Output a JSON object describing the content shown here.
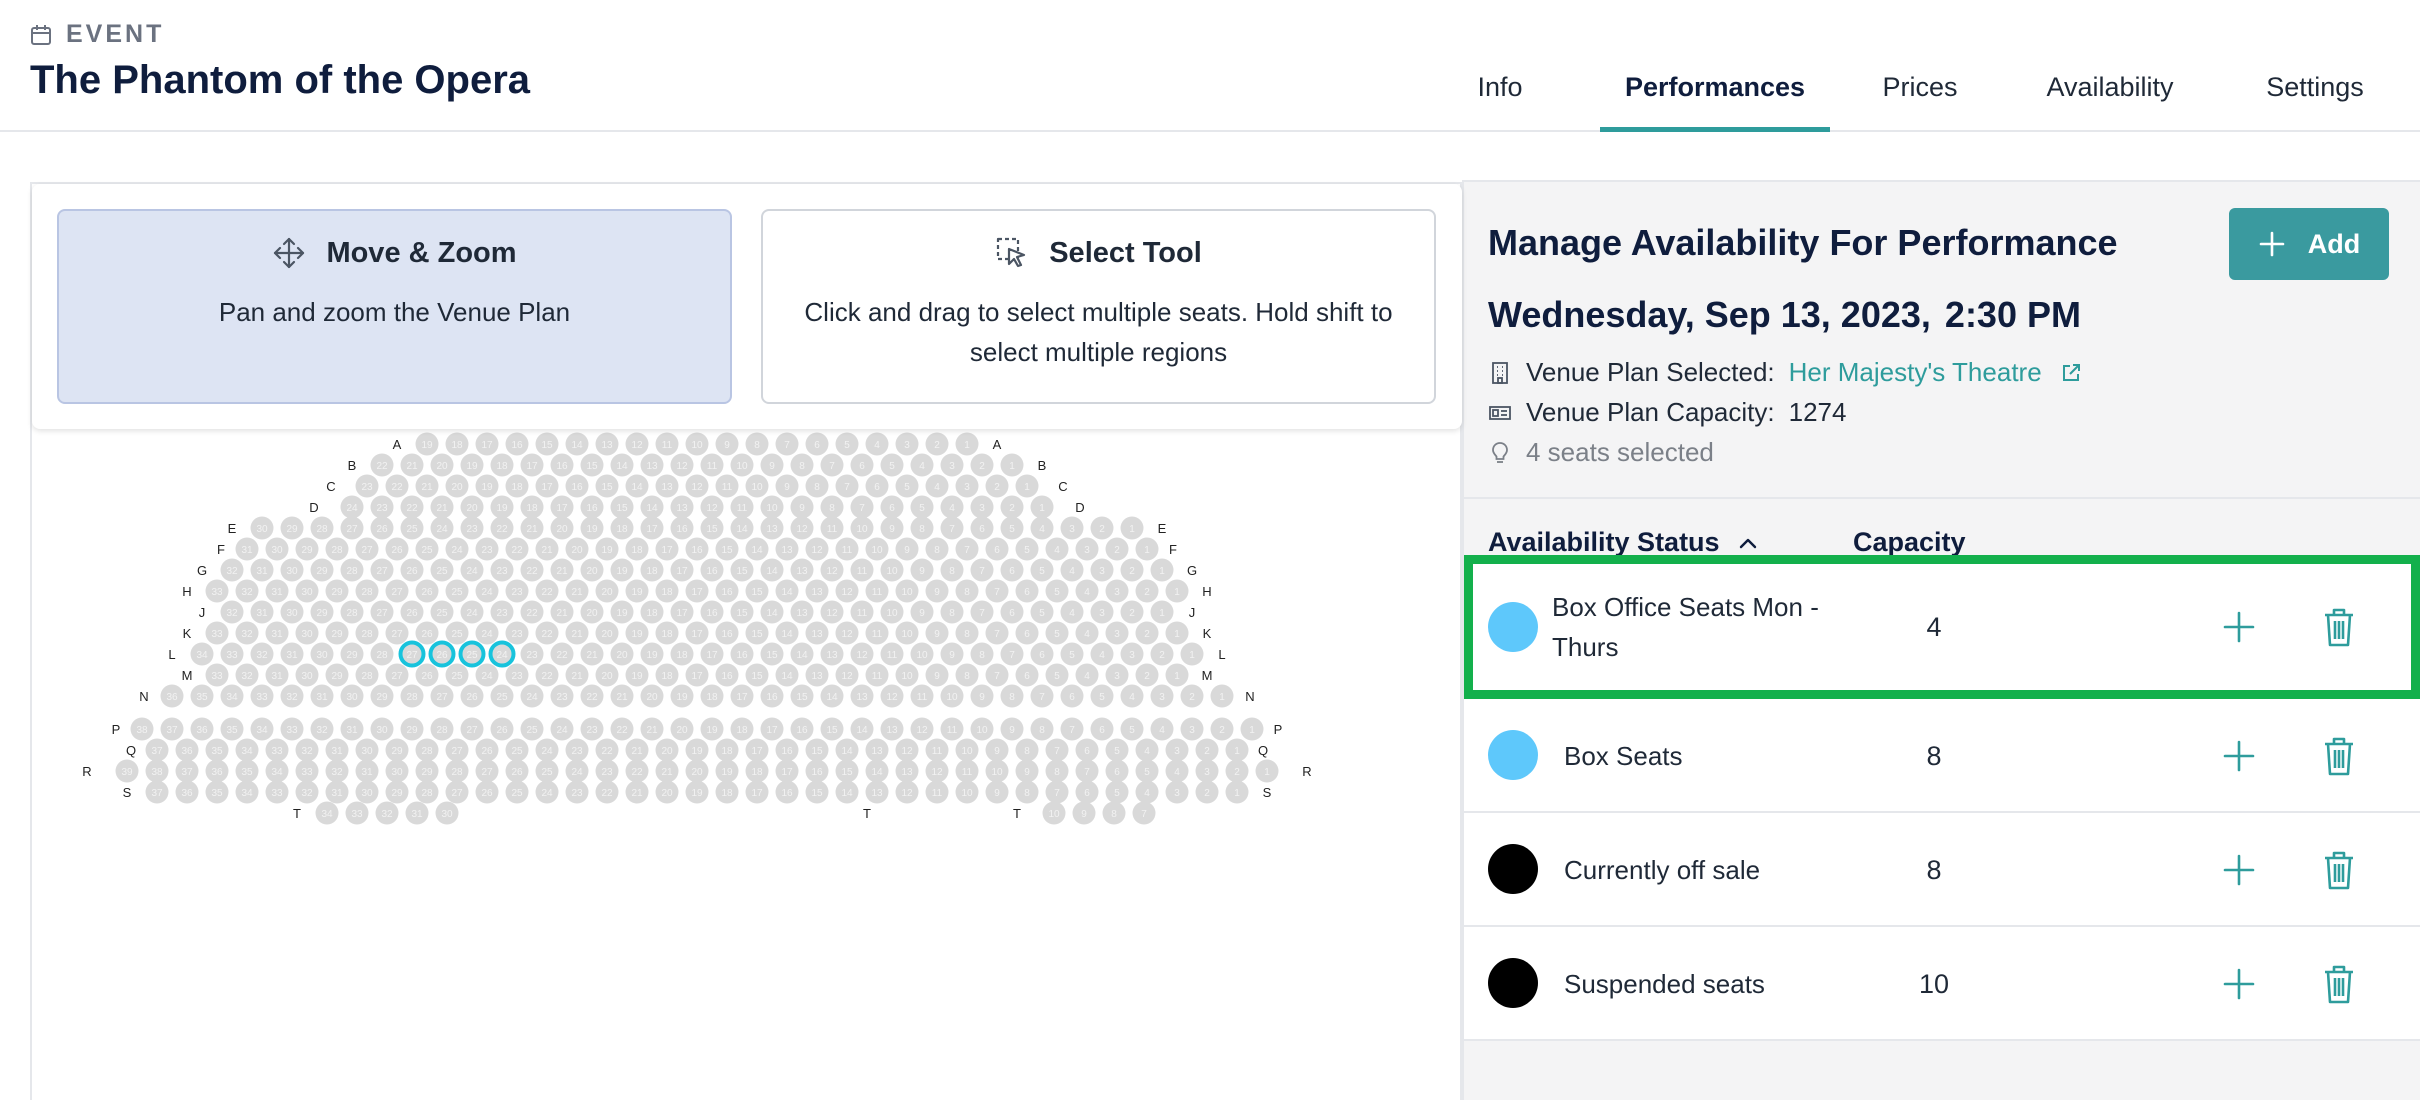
{
  "header": {
    "eyebrow": "EVENT",
    "eyebrow_icon": "calendar-icon",
    "title": "The Phantom of the Opera",
    "tabs": [
      {
        "label": "Info",
        "active": false
      },
      {
        "label": "Performances",
        "active": true
      },
      {
        "label": "Prices",
        "active": false
      },
      {
        "label": "Availability",
        "active": false
      },
      {
        "label": "Settings",
        "active": false
      }
    ],
    "accent_color": "#2e9c9c"
  },
  "tools": {
    "move": {
      "title": "Move & Zoom",
      "desc": "Pan and zoom the Venue Plan",
      "icon": "move-icon",
      "active": true
    },
    "select": {
      "title": "Select Tool",
      "desc": "Click and drag to select multiple seats. Hold shift to select multiple regions",
      "icon": "select-cursor-icon",
      "active": false
    }
  },
  "venue_plan": {
    "seat_color": "#d9d9d9",
    "selected_seat_color": "#18c3dc",
    "rows": [
      {
        "label": "A",
        "max": 19
      },
      {
        "label": "B",
        "max": 22
      },
      {
        "label": "C",
        "max": 23
      },
      {
        "label": "D",
        "max": 24
      },
      {
        "label": "E",
        "max": 30
      },
      {
        "label": "F",
        "max": 31
      },
      {
        "label": "G",
        "max": 32
      },
      {
        "label": "H",
        "max": 33
      },
      {
        "label": "J",
        "max": 32
      },
      {
        "label": "K",
        "max": 33
      },
      {
        "label": "L",
        "max": 34,
        "selected": [
          27,
          26,
          25,
          24
        ]
      },
      {
        "label": "M",
        "max": 33
      },
      {
        "label": "N",
        "max": 36
      },
      {
        "label": "P",
        "max": 38
      },
      {
        "label": "Q",
        "max": 37
      },
      {
        "label": "R",
        "max": 39
      },
      {
        "label": "S",
        "max": 37
      },
      {
        "label": "T",
        "left": [
          34,
          33,
          32,
          31,
          30
        ],
        "right": [
          10,
          9,
          8,
          7
        ]
      }
    ]
  },
  "panel": {
    "title": "Manage Availability For Performance",
    "add_label": "Add",
    "date": "Wednesday, Sep 13, 2023,",
    "time": "2:30 PM",
    "venue_label": "Venue Plan Selected:",
    "venue_name": "Her Majesty's Theatre",
    "capacity_label": "Venue Plan Capacity:",
    "capacity_value": "1274",
    "selected_text": "4 seats selected",
    "col_status": "Availability Status",
    "col_capacity": "Capacity"
  },
  "availability": [
    {
      "label": "Box Office Seats Mon - Thurs",
      "capacity": "4",
      "color": "#5ec8fb",
      "highlight": true
    },
    {
      "label": "Box Seats",
      "capacity": "8",
      "color": "#5ec8fb",
      "highlight": false
    },
    {
      "label": "Currently off sale",
      "capacity": "8",
      "color": "#000000",
      "highlight": false
    },
    {
      "label": "Suspended seats",
      "capacity": "10",
      "color": "#000000",
      "highlight": false
    }
  ]
}
